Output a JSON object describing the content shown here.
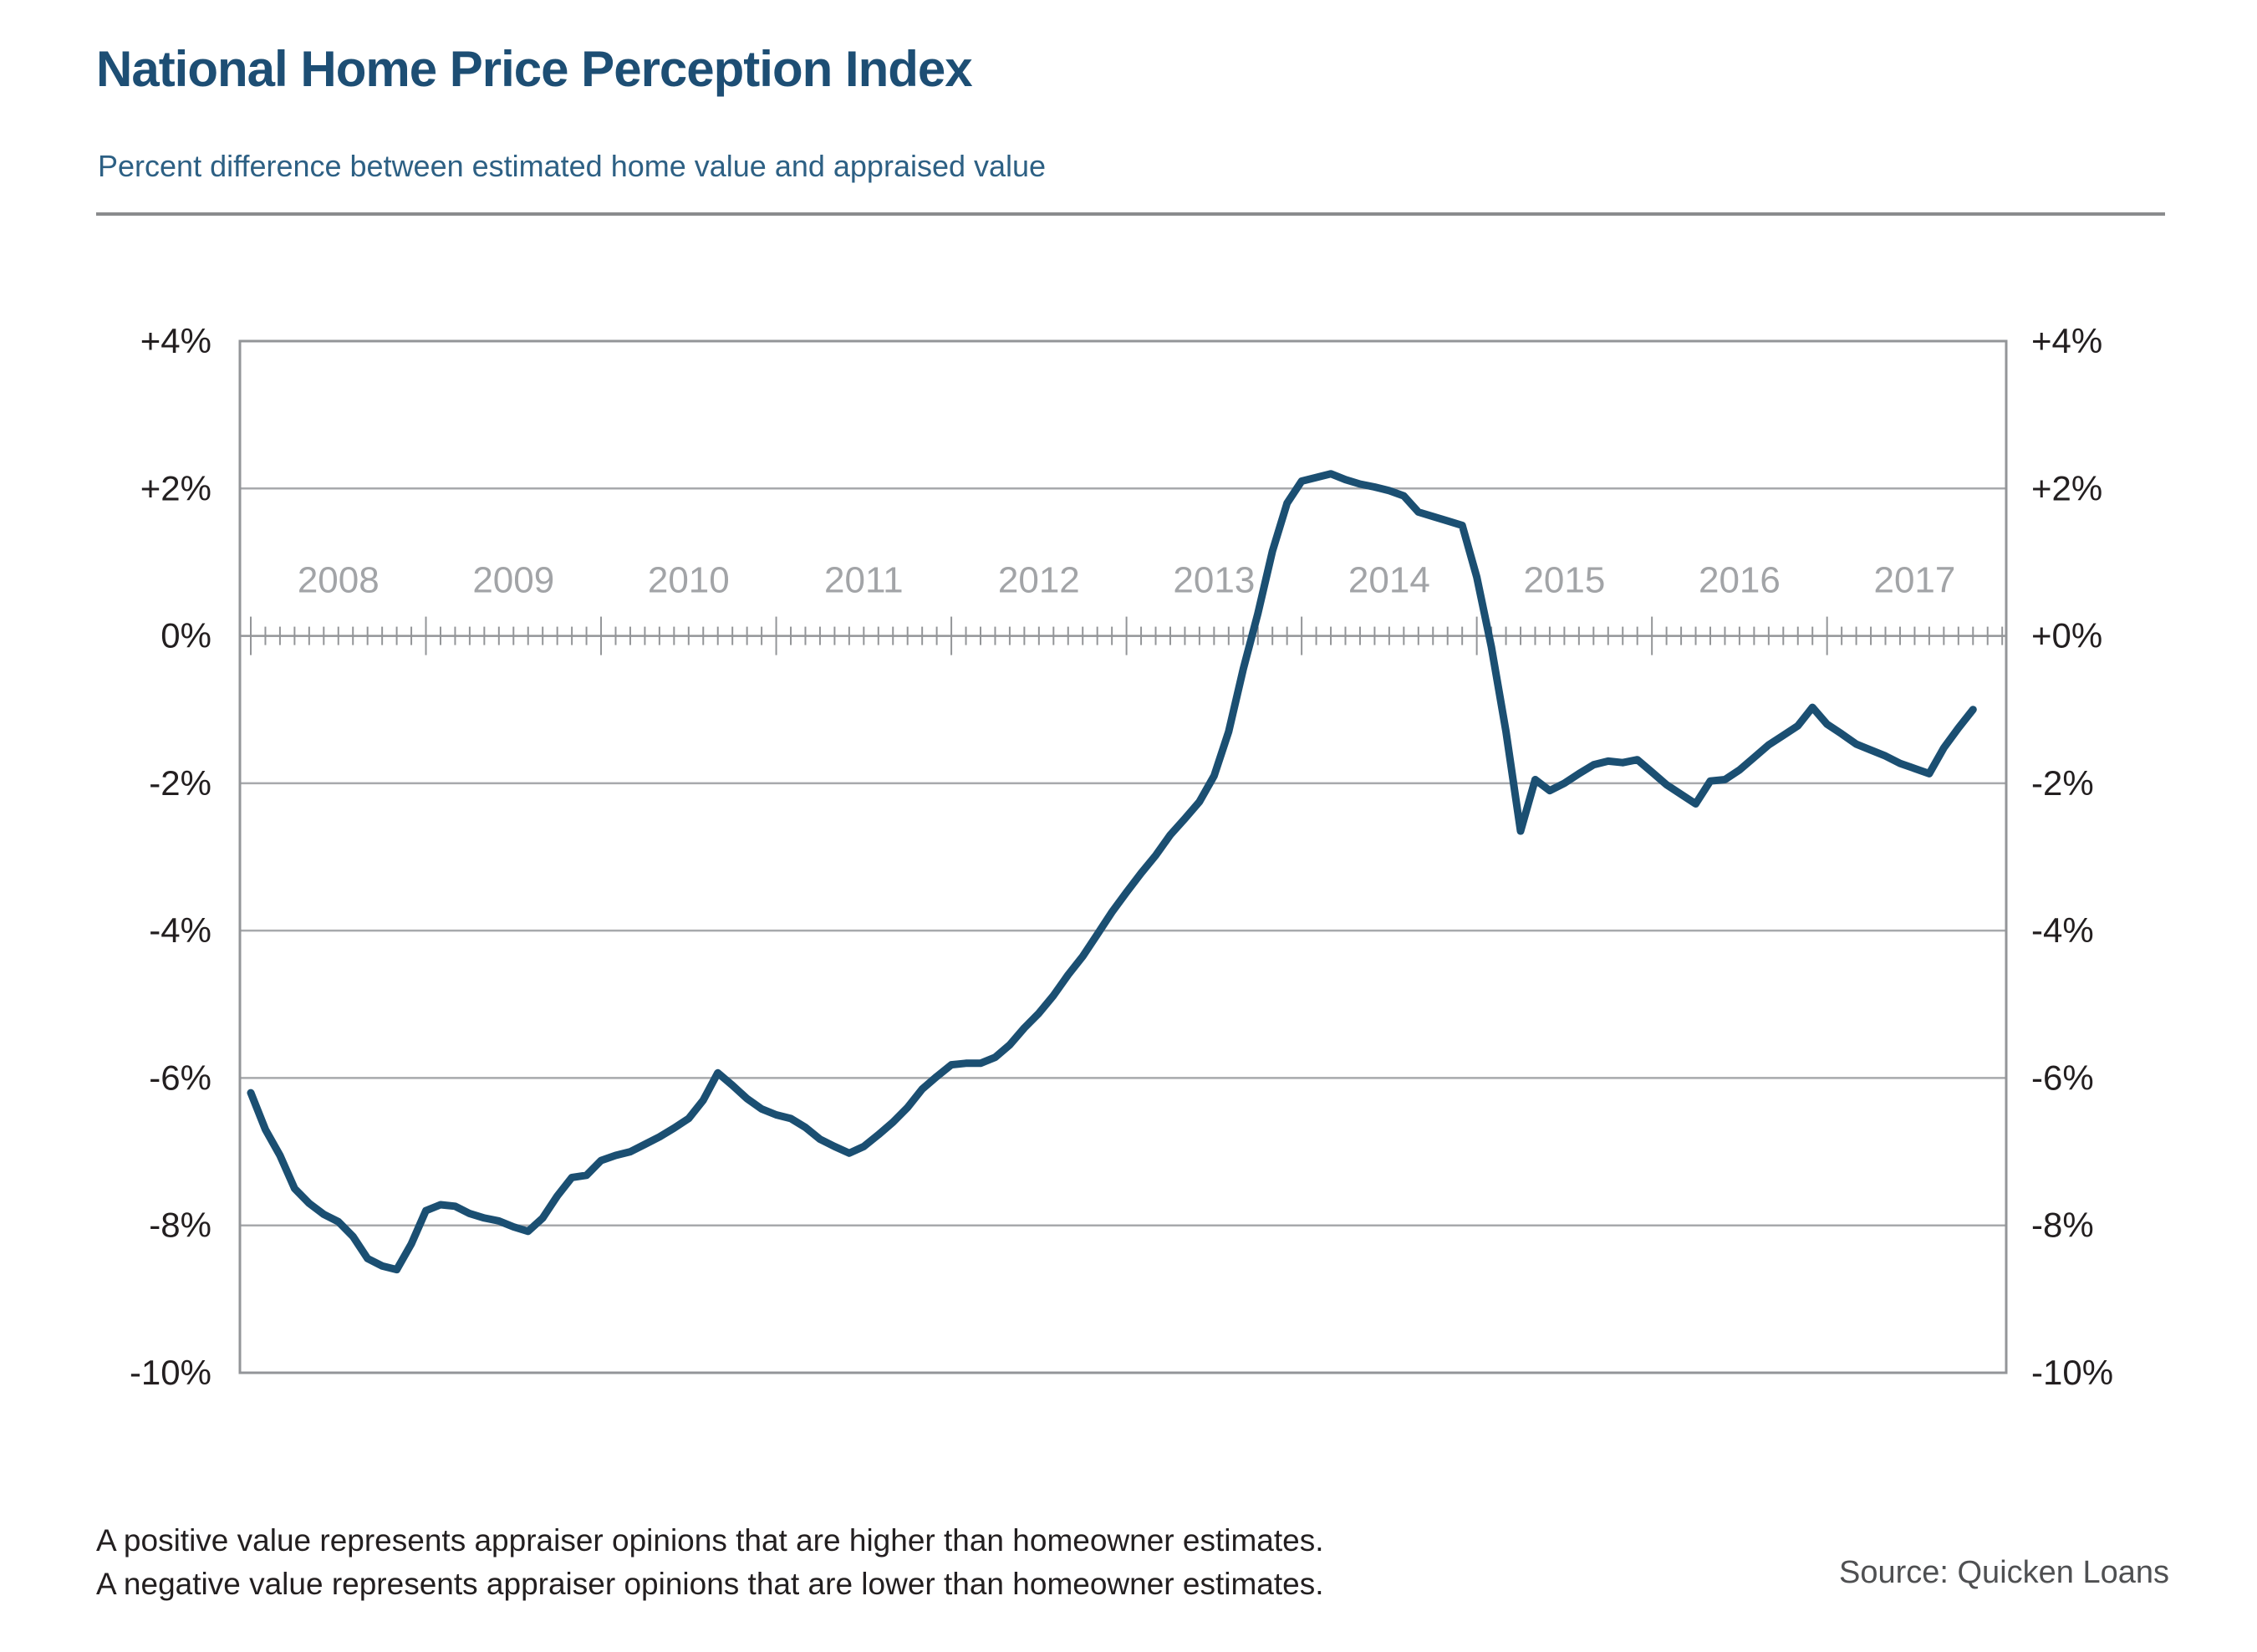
{
  "header": {
    "title": "National Home Price Perception Index",
    "subtitle": "Percent difference between estimated home value and appraised value"
  },
  "chart_data": {
    "type": "line",
    "title": "National Home Price Perception Index",
    "subtitle": "Percent difference between estimated home value and appraised value",
    "x_unit": "month",
    "x_start_label": "2008",
    "x_end_label": "2017",
    "year_labels": [
      "2008",
      "2009",
      "2010",
      "2011",
      "2012",
      "2013",
      "2014",
      "2015",
      "2016",
      "2017"
    ],
    "months_per_year": 12,
    "series": [
      {
        "name": "Percent difference between estimated home value and appraised value",
        "first_point": "January 2008",
        "last_point": "November 2017",
        "values": [
          -6.2,
          -6.7,
          -7.05,
          -7.5,
          -7.7,
          -7.85,
          -7.95,
          -8.15,
          -8.45,
          -8.55,
          -8.6,
          -8.25,
          -7.8,
          -7.72,
          -7.74,
          -7.84,
          -7.9,
          -7.94,
          -8.02,
          -8.08,
          -7.9,
          -7.6,
          -7.35,
          -7.32,
          -7.12,
          -7.05,
          -7.0,
          -6.9,
          -6.8,
          -6.68,
          -6.55,
          -6.3,
          -5.93,
          -6.1,
          -6.28,
          -6.42,
          -6.5,
          -6.55,
          -6.67,
          -6.83,
          -6.93,
          -7.02,
          -6.93,
          -6.77,
          -6.6,
          -6.4,
          -6.15,
          -5.98,
          -5.82,
          -5.8,
          -5.8,
          -5.72,
          -5.55,
          -5.32,
          -5.12,
          -4.88,
          -4.6,
          -4.35,
          -4.05,
          -3.75,
          -3.48,
          -3.22,
          -2.98,
          -2.7,
          -2.48,
          -2.25,
          -1.9,
          -1.3,
          -0.45,
          0.3,
          1.15,
          1.8,
          2.1,
          2.15,
          2.2,
          2.12,
          2.06,
          2.02,
          1.97,
          1.9,
          1.68,
          1.62,
          1.56,
          1.5,
          0.8,
          -0.15,
          -1.3,
          -2.65,
          -1.95,
          -2.1,
          -2.0,
          -1.87,
          -1.75,
          -1.7,
          -1.72,
          -1.68,
          -1.85,
          -2.02,
          -2.15,
          -2.28,
          -1.97,
          -1.95,
          -1.82,
          -1.65,
          -1.48,
          -1.35,
          -1.22,
          -0.97,
          -1.2,
          -1.33,
          -1.47,
          -1.55,
          -1.63,
          -1.73,
          -1.8,
          -1.87,
          -1.52,
          -1.25,
          -1.0
        ]
      }
    ],
    "ylim": [
      -10,
      4
    ],
    "y_gridline_values": [
      2,
      -2,
      -4,
      -6,
      -8
    ],
    "y_axis_zero": 0,
    "y_tick_values": [
      4,
      2,
      0,
      -2,
      -4,
      -6,
      -8,
      -10
    ],
    "y_tick_labels_left": [
      "+4%",
      "+2%",
      "0%",
      "-2%",
      "-4%",
      "-6%",
      "-8%",
      "-10%"
    ],
    "y_tick_labels_right": [
      "+4%",
      "+2%",
      "+0%",
      "-2%",
      "-4%",
      "-6%",
      "-8%",
      "-10%"
    ],
    "grid": "horizontal gridlines every 2%, x axis drawn at 0% with monthly ticks and larger year ticks",
    "legend": "none",
    "colors": {
      "line": "#1b4f72",
      "gridline": "#a7a9ac",
      "plot_border": "#939598",
      "axis": "#939598",
      "year_label": "#a2a4a7",
      "y_label": "#231f20"
    }
  },
  "footnotes": {
    "line1": "A positive value represents appraiser opinions that are higher than homeowner estimates.",
    "line2": "A negative value represents appraiser opinions that are lower than homeowner estimates."
  },
  "source": {
    "label": "Source: Quicken Loans"
  }
}
